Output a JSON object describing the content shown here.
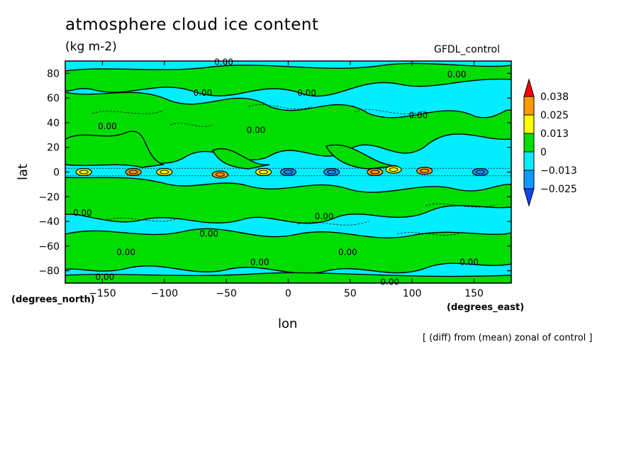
{
  "header": {
    "title": "atmosphere cloud ice content",
    "units": "(kg m-2)",
    "source": "GFDL_control"
  },
  "footer": {
    "note": "[ (diff) from (mean) zonal of control ]"
  },
  "chart_data": {
    "type": "heatmap",
    "title": "atmosphere cloud ice content",
    "subtitle": "(kg m-2)",
    "xlabel": "lon",
    "ylabel": "lat",
    "x_units": "(degrees_east)",
    "y_units": "(degrees_north)",
    "xlim": [
      -180,
      180
    ],
    "ylim": [
      -90,
      90
    ],
    "x_ticks": [
      -150,
      -100,
      -50,
      0,
      50,
      100,
      150
    ],
    "y_ticks": [
      80,
      60,
      40,
      20,
      0,
      -20,
      -40,
      -60,
      -80
    ],
    "x_tick_labels": [
      "−150",
      "−100",
      "−50",
      "0",
      "50",
      "100",
      "150"
    ],
    "y_tick_labels": [
      "80",
      "60",
      "40",
      "20",
      "0",
      "−20",
      "−40",
      "−60",
      "−80"
    ],
    "legend": {
      "placement": "right",
      "levels": [
        0.038,
        0.025,
        0.013,
        0,
        -0.013,
        -0.025
      ],
      "level_labels": [
        "0.038",
        "0.025",
        "0.013",
        "0",
        "−0.013",
        "−0.025"
      ],
      "colors": [
        "#ff0000",
        "#ff9900",
        "#ffff00",
        "#00dd00",
        "#00eeff",
        "#1199ff",
        "#1144ff"
      ]
    },
    "contour_labels": [
      {
        "text": "0.00",
        "lon": -52,
        "lat": 89
      },
      {
        "text": "0.00",
        "lon": 136,
        "lat": 79
      },
      {
        "text": "0.00",
        "lon": -69,
        "lat": 64
      },
      {
        "text": "0.00",
        "lon": 15,
        "lat": 64
      },
      {
        "text": "0.00",
        "lon": 105,
        "lat": 46
      },
      {
        "text": "0.00",
        "lon": -146,
        "lat": 37
      },
      {
        "text": "0.00",
        "lon": -26,
        "lat": 34
      },
      {
        "text": "0.00",
        "lon": -166,
        "lat": -33
      },
      {
        "text": "0.00",
        "lon": 29,
        "lat": -36
      },
      {
        "text": "0.00",
        "lon": -64,
        "lat": -50
      },
      {
        "text": "0.00",
        "lon": -131,
        "lat": -65
      },
      {
        "text": "0.00",
        "lon": 48,
        "lat": -65
      },
      {
        "text": "0.00",
        "lon": -23,
        "lat": -73
      },
      {
        "text": "0.00",
        "lon": 146,
        "lat": -73
      },
      {
        "text": "0.00",
        "lon": -148,
        "lat": -85
      },
      {
        "text": "0.00",
        "lon": 82,
        "lat": -89
      }
    ],
    "equatorial_extremes": [
      {
        "lon": -165,
        "lat": 0,
        "value": 0.02
      },
      {
        "lon": -125,
        "lat": 0,
        "value": 0.03
      },
      {
        "lon": -100,
        "lat": 0,
        "value": 0.02
      },
      {
        "lon": -55,
        "lat": -2,
        "value": 0.03
      },
      {
        "lon": -20,
        "lat": 0,
        "value": 0.02
      },
      {
        "lon": 0,
        "lat": 0,
        "value": -0.02
      },
      {
        "lon": 35,
        "lat": 0,
        "value": -0.015
      },
      {
        "lon": 70,
        "lat": 0,
        "value": 0.03
      },
      {
        "lon": 85,
        "lat": 2,
        "value": 0.02
      },
      {
        "lon": 110,
        "lat": 1,
        "value": 0.03
      },
      {
        "lon": 155,
        "lat": 0,
        "value": -0.015
      }
    ]
  }
}
